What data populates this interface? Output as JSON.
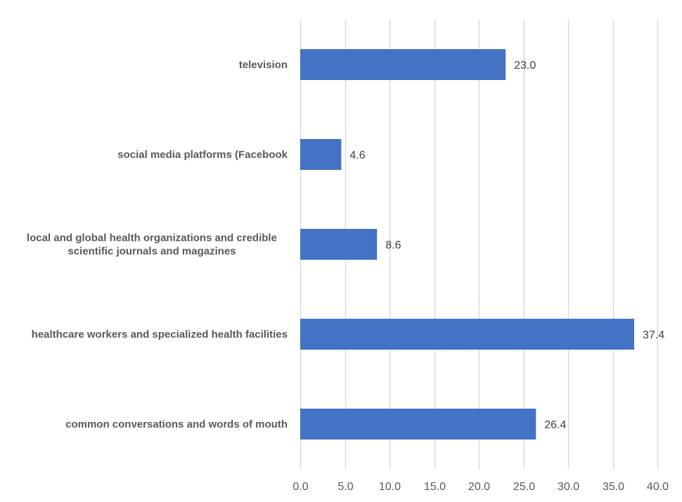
{
  "chart_data": {
    "type": "bar",
    "orientation": "horizontal",
    "title": "",
    "xlabel": "",
    "ylabel": "",
    "categories": [
      "television",
      "social media platforms (Facebook",
      "local and global health organizations and credible scientific journals and magazines",
      "healthcare workers and specialized health facilities",
      "common conversations and words of mouth"
    ],
    "category_lines": [
      [
        "television"
      ],
      [
        "social media platforms (Facebook"
      ],
      [
        "local and global health organizations and credible",
        "scientific journals and magazines"
      ],
      [
        "healthcare workers and specialized health facilities"
      ],
      [
        "common conversations and words of mouth"
      ]
    ],
    "values": [
      23.0,
      4.6,
      8.6,
      37.4,
      26.4
    ],
    "data_labels": [
      "23.0",
      "4.6",
      "8.6",
      "37.4",
      "26.4"
    ],
    "xlim": [
      0,
      40
    ],
    "xticks": [
      0,
      5,
      10,
      15,
      20,
      25,
      30,
      35,
      40
    ],
    "xtick_labels": [
      "0.0",
      "5.0",
      "10.0",
      "15.0",
      "20.0",
      "25.0",
      "30.0",
      "35.0",
      "40.0"
    ],
    "grid": true,
    "legend": "none",
    "bar_color": "#4472C4",
    "grid_color": "#D9D9D9"
  }
}
